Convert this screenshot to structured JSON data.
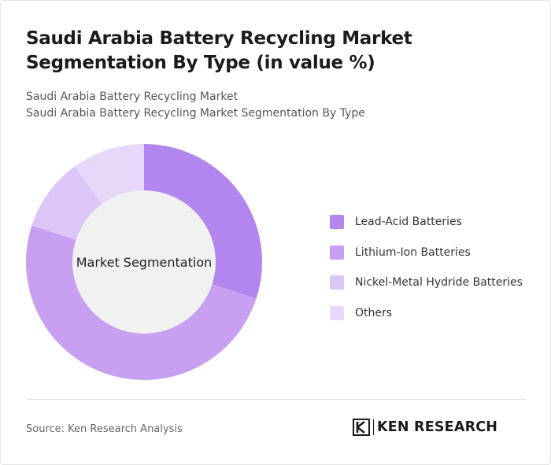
{
  "title": "Saudi Arabia Battery Recycling Market Segmentation By Type (in value %)",
  "subtitle_1": "Saudi Arabia Battery Recycling Market",
  "subtitle_2": "Saudi Arabia Battery Recycling Market Segmentation By Type",
  "source": "Source: Ken Research Analysis",
  "logo_text": "KEN RESEARCH",
  "chart_data": {
    "type": "pie",
    "style": "donut",
    "center_label": "Market Segmentation",
    "categories": [
      "Lead-Acid Batteries",
      "Lithium-Ion Batteries",
      "Nickel-Metal Hydride Batteries",
      "Others"
    ],
    "values": [
      30,
      50,
      10,
      10
    ],
    "colors": [
      "#b286ee",
      "#c7a0f2",
      "#dbc6f7",
      "#e7d8fa"
    ],
    "legend_position": "right"
  }
}
